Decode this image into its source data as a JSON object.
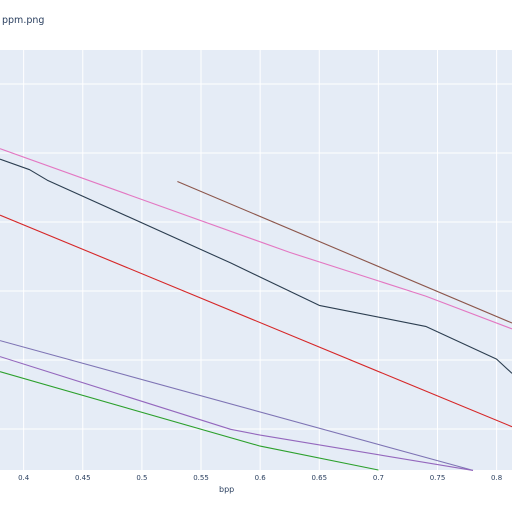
{
  "title": "ppm.png",
  "chart_data": {
    "type": "line",
    "title": "ppm.png",
    "xlabel": "bpp",
    "ylabel": "",
    "xlim": [
      0.38,
      0.813
    ],
    "ylim": [
      0,
      1
    ],
    "grid": true,
    "legend": "none",
    "plot_bg": "#e5ecf6",
    "x_ticks": [
      "0.4",
      "0.45",
      "0.5",
      "0.55",
      "0.6",
      "0.65",
      "0.7",
      "0.75",
      "0.8"
    ],
    "series": [
      {
        "color": "#2c3e50",
        "x": [
          0.38,
          0.405,
          0.42,
          0.575,
          0.65,
          0.74,
          0.8,
          0.813
        ],
        "y": [
          0.74,
          0.715,
          0.69,
          0.493,
          0.392,
          0.342,
          0.264,
          0.23
        ]
      },
      {
        "color": "#e377c2",
        "x": [
          0.38,
          0.625,
          0.74,
          0.813
        ],
        "y": [
          0.765,
          0.518,
          0.414,
          0.336
        ]
      },
      {
        "color": "#8c564b",
        "x": [
          0.53,
          0.813
        ],
        "y": [
          0.687,
          0.35
        ]
      },
      {
        "color": "#d62728",
        "x": [
          0.38,
          0.813
        ],
        "y": [
          0.607,
          0.103
        ]
      },
      {
        "color": "#7e74b4",
        "x": [
          0.38,
          0.78
        ],
        "y": [
          0.308,
          -0.001
        ]
      },
      {
        "color": "#9467bd",
        "x": [
          0.38,
          0.575,
          0.6,
          0.78
        ],
        "y": [
          0.27,
          0.097,
          0.083,
          -0.001
        ]
      },
      {
        "color": "#2ca02c",
        "x": [
          0.38,
          0.6,
          0.7
        ],
        "y": [
          0.234,
          0.057,
          0.0
        ]
      }
    ]
  }
}
